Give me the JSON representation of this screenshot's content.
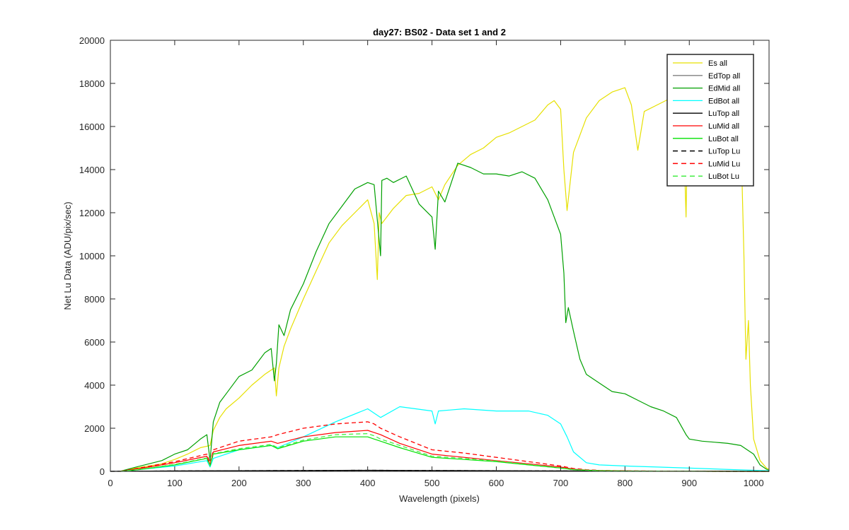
{
  "chart_data": {
    "type": "line",
    "title": "day27: BS02 - Data set 1 and 2",
    "xlabel": "Wavelength (pixels)",
    "ylabel": "Net Lu Data (ADU/pix/sec)",
    "xlim": [
      0,
      1024
    ],
    "ylim": [
      0,
      20000
    ],
    "xticks": [
      0,
      100,
      200,
      300,
      400,
      500,
      600,
      700,
      800,
      900,
      1000
    ],
    "yticks": [
      0,
      2000,
      4000,
      6000,
      8000,
      10000,
      12000,
      14000,
      16000,
      18000,
      20000
    ],
    "grid": false,
    "legend_position": "top-right",
    "series": [
      {
        "name": "Es  all",
        "color": "#e6e000",
        "dash": "solid",
        "x": [
          15,
          40,
          80,
          100,
          120,
          140,
          155,
          160,
          170,
          180,
          200,
          220,
          240,
          255,
          258,
          262,
          270,
          280,
          300,
          320,
          340,
          360,
          380,
          400,
          410,
          415,
          418,
          422,
          440,
          460,
          480,
          500,
          510,
          520,
          540,
          560,
          580,
          600,
          620,
          640,
          660,
          680,
          690,
          700,
          705,
          710,
          720,
          740,
          760,
          780,
          800,
          810,
          820,
          830,
          850,
          870,
          880,
          890,
          895,
          898,
          902,
          920,
          940,
          960,
          975,
          982,
          985,
          988,
          992,
          995,
          1000,
          1010,
          1020,
          1024
        ],
        "y": [
          0,
          150,
          350,
          550,
          800,
          1100,
          1200,
          1900,
          2500,
          2900,
          3400,
          4000,
          4500,
          4800,
          3500,
          4800,
          5800,
          6600,
          8000,
          9300,
          10600,
          11400,
          12000,
          12600,
          11500,
          8900,
          12000,
          11500,
          12200,
          12800,
          12900,
          13200,
          12600,
          13300,
          14200,
          14700,
          15000,
          15500,
          15700,
          16000,
          16300,
          17000,
          17200,
          16800,
          14000,
          12100,
          14800,
          16400,
          17200,
          17600,
          17800,
          17000,
          14900,
          16700,
          17000,
          17300,
          17300,
          16800,
          11800,
          17200,
          17100,
          17000,
          16800,
          16300,
          14800,
          13500,
          10000,
          5200,
          7000,
          4000,
          1500,
          500,
          150,
          100
        ]
      },
      {
        "name": "EdTop  all",
        "color": "#808080",
        "dash": "solid",
        "x": [
          0,
          100,
          200,
          300,
          400,
          500,
          600,
          700,
          800,
          900,
          1000,
          1024
        ],
        "y": [
          0,
          15,
          25,
          30,
          35,
          30,
          25,
          20,
          15,
          10,
          5,
          0
        ]
      },
      {
        "name": "EdMid  all",
        "color": "#00a000",
        "dash": "solid",
        "x": [
          15,
          40,
          80,
          100,
          120,
          140,
          150,
          155,
          160,
          170,
          180,
          200,
          220,
          240,
          250,
          255,
          258,
          262,
          270,
          280,
          300,
          320,
          340,
          360,
          380,
          400,
          410,
          420,
          422,
          430,
          440,
          460,
          480,
          500,
          505,
          510,
          520,
          540,
          560,
          580,
          600,
          620,
          640,
          660,
          680,
          690,
          700,
          705,
          708,
          712,
          720,
          730,
          740,
          760,
          780,
          800,
          820,
          840,
          860,
          880,
          895,
          900,
          920,
          940,
          960,
          980,
          1000,
          1010,
          1020,
          1024
        ],
        "y": [
          0,
          200,
          500,
          800,
          1000,
          1500,
          1700,
          500,
          2300,
          3200,
          3600,
          4400,
          4700,
          5500,
          5700,
          4200,
          5000,
          6800,
          6300,
          7500,
          8700,
          10200,
          11500,
          12300,
          13100,
          13400,
          13300,
          10000,
          13500,
          13600,
          13400,
          13700,
          12400,
          11800,
          10300,
          13000,
          12500,
          14300,
          14100,
          13800,
          13800,
          13700,
          13900,
          13600,
          12600,
          11800,
          11000,
          9200,
          6900,
          7600,
          6500,
          5200,
          4500,
          4100,
          3700,
          3600,
          3300,
          3000,
          2800,
          2500,
          1700,
          1500,
          1400,
          1350,
          1300,
          1200,
          800,
          300,
          100,
          50
        ]
      },
      {
        "name": "EdBot  all",
        "color": "#00ffff",
        "dash": "solid",
        "x": [
          15,
          50,
          100,
          150,
          155,
          160,
          200,
          250,
          260,
          300,
          350,
          400,
          420,
          450,
          500,
          505,
          510,
          550,
          600,
          650,
          680,
          700,
          710,
          720,
          740,
          760,
          800,
          850,
          900,
          950,
          1000,
          1024
        ],
        "y": [
          0,
          100,
          250,
          500,
          200,
          600,
          1000,
          1200,
          1100,
          1600,
          2300,
          2900,
          2500,
          3000,
          2800,
          2200,
          2800,
          2900,
          2800,
          2800,
          2600,
          2200,
          1600,
          900,
          400,
          300,
          250,
          200,
          150,
          100,
          50,
          30
        ]
      },
      {
        "name": "LuTop  all",
        "color": "#000000",
        "dash": "solid",
        "x": [
          0,
          100,
          200,
          300,
          400,
          500,
          600,
          700,
          800,
          900,
          1000,
          1024
        ],
        "y": [
          0,
          20,
          30,
          40,
          50,
          40,
          30,
          20,
          10,
          5,
          0,
          0
        ]
      },
      {
        "name": "LuMid  all",
        "color": "#ff0000",
        "dash": "solid",
        "x": [
          15,
          50,
          100,
          150,
          155,
          160,
          200,
          250,
          260,
          300,
          350,
          400,
          410,
          420,
          450,
          500,
          550,
          600,
          650,
          700,
          720,
          740,
          760,
          800,
          850,
          900,
          950,
          1000,
          1024
        ],
        "y": [
          0,
          150,
          400,
          700,
          300,
          900,
          1200,
          1400,
          1300,
          1600,
          1800,
          1900,
          1800,
          1700,
          1300,
          800,
          650,
          500,
          350,
          200,
          100,
          60,
          40,
          20,
          10,
          5,
          0,
          0,
          0
        ]
      },
      {
        "name": "LuBot  all",
        "color": "#00e000",
        "dash": "solid",
        "x": [
          15,
          50,
          100,
          150,
          155,
          160,
          200,
          250,
          260,
          300,
          350,
          400,
          410,
          420,
          450,
          500,
          550,
          600,
          650,
          700,
          720,
          740,
          760,
          800,
          850,
          900,
          950,
          1000,
          1024
        ],
        "y": [
          0,
          100,
          300,
          600,
          250,
          800,
          1000,
          1200,
          1050,
          1400,
          1600,
          1600,
          1500,
          1400,
          1100,
          650,
          550,
          450,
          300,
          150,
          80,
          50,
          30,
          15,
          8,
          4,
          0,
          0,
          0
        ]
      },
      {
        "name": "LuTop  Lu",
        "color": "#000000",
        "dash": "dashed",
        "x": [
          0,
          100,
          200,
          300,
          400,
          500,
          600,
          700,
          800,
          900,
          1000,
          1024
        ],
        "y": [
          0,
          20,
          30,
          40,
          50,
          40,
          30,
          20,
          10,
          5,
          0,
          0
        ]
      },
      {
        "name": "LuMid  Lu",
        "color": "#ff0000",
        "dash": "dashed",
        "x": [
          15,
          50,
          100,
          150,
          155,
          160,
          200,
          250,
          260,
          300,
          350,
          400,
          410,
          420,
          450,
          500,
          550,
          600,
          650,
          700,
          720,
          740,
          760,
          800,
          850,
          900,
          950,
          1000,
          1024
        ],
        "y": [
          0,
          180,
          450,
          800,
          350,
          1000,
          1400,
          1600,
          1700,
          2000,
          2200,
          2300,
          2200,
          2000,
          1600,
          1000,
          850,
          650,
          450,
          250,
          130,
          80,
          50,
          25,
          12,
          6,
          0,
          0,
          0
        ]
      },
      {
        "name": "LuBot  Lu",
        "color": "#44ee44",
        "dash": "dashed",
        "x": [
          15,
          50,
          100,
          150,
          155,
          160,
          200,
          250,
          260,
          300,
          350,
          400,
          410,
          420,
          450,
          500,
          550,
          600,
          650,
          700,
          720,
          740,
          760,
          800,
          850,
          900,
          950,
          1000,
          1024
        ],
        "y": [
          0,
          110,
          320,
          620,
          260,
          820,
          1050,
          1250,
          1100,
          1450,
          1700,
          1750,
          1650,
          1500,
          1200,
          700,
          600,
          480,
          320,
          160,
          85,
          55,
          35,
          18,
          9,
          5,
          0,
          0,
          0
        ]
      }
    ]
  }
}
